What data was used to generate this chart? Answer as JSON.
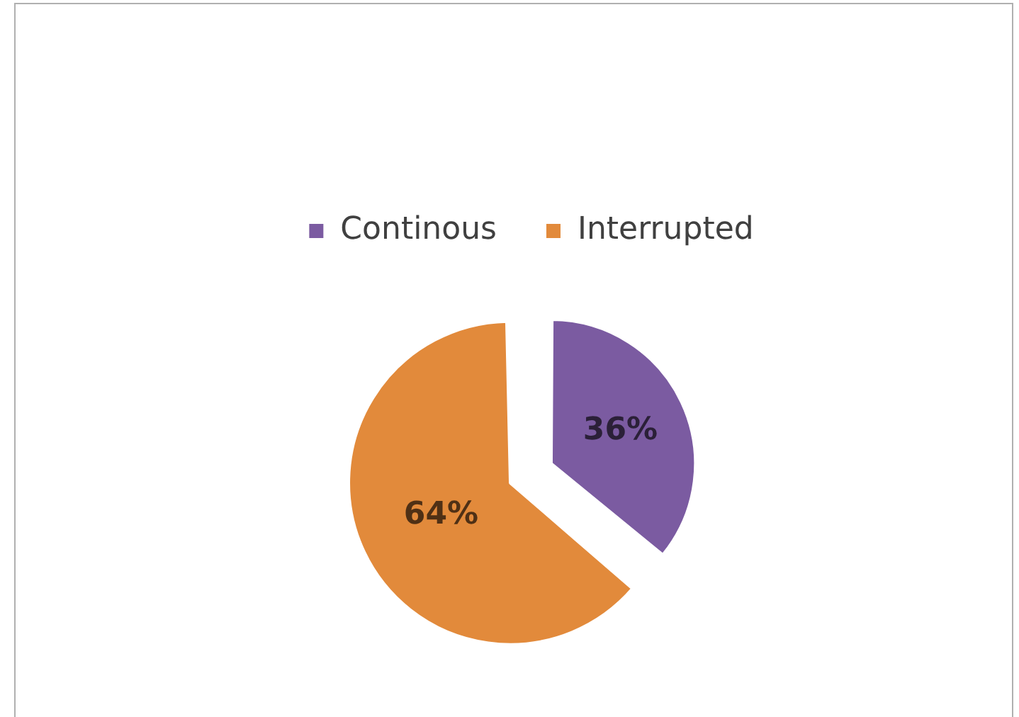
{
  "chart_data": {
    "type": "pie",
    "categories": [
      "Continous",
      "Interrupted"
    ],
    "values": [
      36,
      64
    ],
    "colors": [
      "#7b5ba1",
      "#e28a3b"
    ],
    "value_labels": [
      "36%",
      "64%"
    ],
    "legend": "top"
  }
}
